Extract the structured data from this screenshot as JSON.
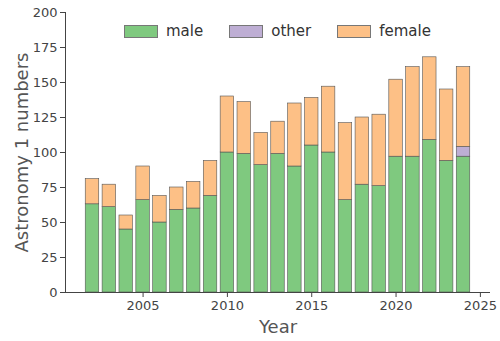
{
  "chart_data": {
    "type": "bar",
    "stacked": true,
    "x_label": "Year",
    "y_label": "Astronomy 1 numbers",
    "x": [
      2002,
      2003,
      2004,
      2005,
      2006,
      2007,
      2008,
      2009,
      2010,
      2011,
      2012,
      2013,
      2014,
      2015,
      2016,
      2017,
      2018,
      2019,
      2020,
      2021,
      2022,
      2023,
      2024
    ],
    "series": [
      {
        "name": "male",
        "color": "#7fc97f",
        "values": [
          63,
          61,
          45,
          66,
          50,
          59,
          60,
          69,
          100,
          99,
          91,
          99,
          90,
          105,
          100,
          66,
          77,
          76,
          97,
          97,
          109,
          94,
          97
        ]
      },
      {
        "name": "other",
        "color": "#beaed4",
        "values": [
          0,
          0,
          0,
          0,
          0,
          0,
          0,
          0,
          0,
          0,
          0,
          0,
          0,
          0,
          0,
          0,
          0,
          0,
          0,
          0,
          0,
          0,
          7
        ]
      },
      {
        "name": "female",
        "color": "#fdc086",
        "values": [
          18,
          16,
          10,
          24,
          19,
          16,
          19,
          25,
          40,
          37,
          23,
          23,
          45,
          34,
          47,
          55,
          48,
          51,
          55,
          64,
          59,
          51,
          57
        ]
      }
    ],
    "xlim": [
      2000.4,
      2025.6
    ],
    "xticks": [
      2005,
      2010,
      2015,
      2020,
      2025
    ],
    "ylim": [
      0,
      200
    ],
    "yticks": [
      0,
      25,
      50,
      75,
      100,
      125,
      150,
      175,
      200
    ],
    "grid": false,
    "legend": "upper center"
  }
}
